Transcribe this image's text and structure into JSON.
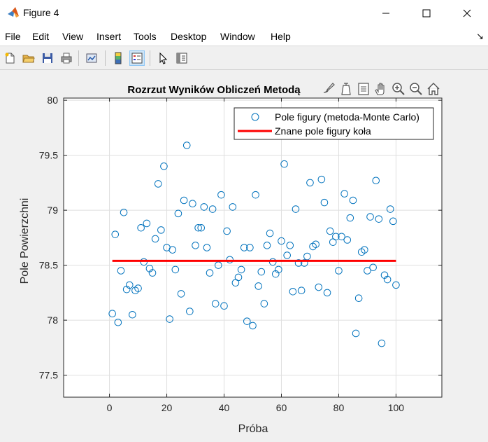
{
  "window": {
    "title": "Figure 4",
    "icon": "matlab-icon",
    "controls": [
      "minimize-icon",
      "maximize-icon",
      "close-icon"
    ]
  },
  "menu": [
    "File",
    "Edit",
    "View",
    "Insert",
    "Tools",
    "Desktop",
    "Window",
    "Help"
  ],
  "toolbar": [
    "new-figure-icon",
    "open-icon",
    "save-icon",
    "print-icon",
    "link-plot-icon",
    "insert-colorbar-icon",
    "insert-legend-icon",
    "pointer-icon",
    "property-inspector-icon"
  ],
  "axes_toolbar": [
    "brush-icon",
    "data-tips-icon",
    "datatip-list-icon",
    "pan-icon",
    "zoom-in-icon",
    "zoom-out-icon",
    "home-icon"
  ],
  "chart_data": {
    "type": "scatter",
    "title": "Rozrzut Wyników Obliczeń Metodą",
    "xlabel": "Próba",
    "ylabel": "Pole Powierzchni",
    "xlim": [
      -16,
      116
    ],
    "ylim": [
      77.3,
      80.02
    ],
    "xticks": [
      0,
      20,
      40,
      60,
      80,
      100
    ],
    "yticks": [
      77.5,
      78,
      78.5,
      79,
      79.5,
      80
    ],
    "ytick_labels": [
      "77.5",
      "78",
      "78.5",
      "79",
      "79.5",
      "80"
    ],
    "grid": true,
    "legend_position": "top-right",
    "colors": {
      "scatter": "#0072bd",
      "line": "#ff0000"
    },
    "series": [
      {
        "name": "Pole figury (metoda-Monte Carlo)",
        "style": "markers",
        "marker": "open-circle",
        "x": [
          1,
          2,
          3,
          4,
          5,
          6,
          7,
          8,
          9,
          10,
          11,
          12,
          13,
          14,
          15,
          16,
          17,
          18,
          19,
          20,
          21,
          22,
          23,
          24,
          25,
          26,
          27,
          28,
          29,
          30,
          31,
          32,
          33,
          34,
          35,
          36,
          37,
          38,
          39,
          40,
          41,
          42,
          43,
          44,
          45,
          46,
          47,
          48,
          49,
          50,
          51,
          52,
          53,
          54,
          55,
          56,
          57,
          58,
          59,
          60,
          61,
          62,
          63,
          64,
          65,
          66,
          67,
          68,
          69,
          70,
          71,
          72,
          73,
          74,
          75,
          76,
          77,
          78,
          79,
          80,
          81,
          82,
          83,
          84,
          85,
          86,
          87,
          88,
          89,
          90,
          91,
          92,
          93,
          94,
          95,
          96,
          97,
          98,
          99,
          100
        ],
        "y": [
          78.06,
          78.78,
          77.98,
          78.45,
          78.98,
          78.28,
          78.32,
          78.05,
          78.27,
          78.29,
          78.84,
          78.53,
          78.88,
          78.47,
          78.43,
          78.74,
          79.24,
          78.82,
          79.4,
          78.66,
          78.01,
          78.64,
          78.46,
          78.97,
          78.24,
          79.09,
          79.59,
          78.08,
          79.06,
          78.68,
          78.84,
          78.84,
          79.03,
          78.66,
          78.43,
          79.01,
          78.15,
          78.5,
          79.14,
          78.13,
          78.81,
          78.55,
          79.03,
          78.34,
          78.39,
          78.46,
          78.66,
          77.99,
          78.66,
          77.95,
          79.14,
          78.31,
          78.44,
          78.15,
          78.68,
          78.79,
          78.53,
          78.42,
          78.46,
          78.72,
          79.42,
          78.59,
          78.68,
          78.26,
          79.01,
          78.52,
          78.27,
          78.52,
          78.58,
          79.25,
          78.67,
          78.69,
          78.3,
          79.28,
          79.07,
          78.25,
          78.81,
          78.71,
          78.76,
          78.45,
          78.76,
          79.15,
          78.73,
          78.93,
          79.09,
          77.88,
          78.2,
          78.62,
          78.64,
          78.45,
          78.94,
          78.48,
          79.27,
          78.92,
          77.79,
          78.41,
          78.37,
          79.01,
          78.9,
          78.32
        ]
      },
      {
        "name": "Znane pole figury koła",
        "style": "line",
        "x": [
          1,
          100
        ],
        "y": [
          78.54,
          78.54
        ]
      }
    ]
  }
}
